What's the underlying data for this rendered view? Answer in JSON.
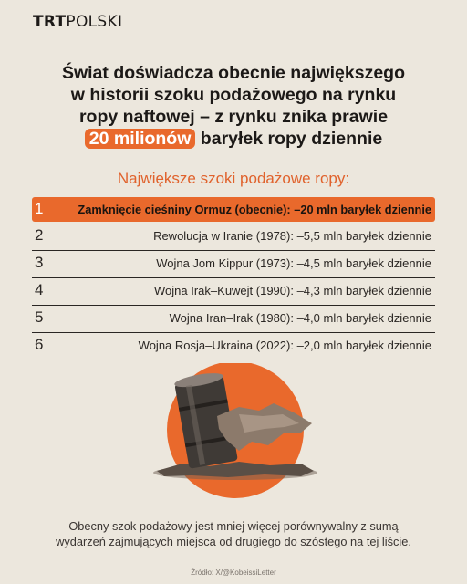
{
  "brand": {
    "bold": "TRT",
    "light": "POLSKI"
  },
  "headline": {
    "line1": "Świat doświadcza obecnie największego",
    "line2": "w historii szoku podażowego na rynku",
    "line3": "ropy naftowej – z rynku znika prawie",
    "highlight": "20 milionów",
    "line4_rest": " baryłek ropy dziennie"
  },
  "subtitle": "Największe szoki podażowe ropy:",
  "items": [
    {
      "num": "1",
      "text": "Zamknięcie cieśniny Ormuz (obecnie): –20 mln baryłek dziennie"
    },
    {
      "num": "2",
      "text": "Rewolucja w Iranie (1978): –5,5 mln baryłek dziennie"
    },
    {
      "num": "3",
      "text": "Wojna Jom Kippur (1973): –4,5 mln baryłek dziennie"
    },
    {
      "num": "4",
      "text": "Wojna Irak–Kuwejt (1990): –4,3 mln baryłek dziennie"
    },
    {
      "num": "5",
      "text": "Wojna Iran–Irak (1980): –4,0 mln baryłek dziennie"
    },
    {
      "num": "6",
      "text": "Wojna Rosja–Ukraina (2022): –2,0 mln baryłek dziennie"
    }
  ],
  "footer": {
    "line1": "Obecny szok podażowy jest mniej więcej porównywalny z sumą",
    "line2": "wydarzeń zajmujących miejsca od drugiego do szóstego na tej liście."
  },
  "source": "Źródło: X/@KobeissiLetter",
  "colors": {
    "accent": "#e9692c",
    "background": "#ece7dd",
    "text": "#1c1917"
  },
  "illustration": "oil-barrel-with-rock"
}
